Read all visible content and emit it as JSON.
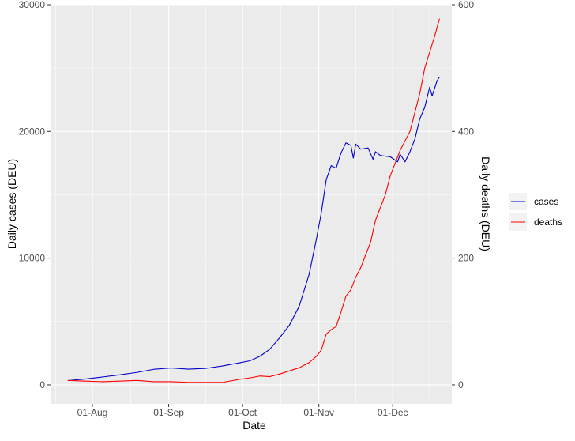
{
  "chart_data": {
    "type": "line",
    "xlabel": "Date",
    "ylabel": "Daily cases (DEU)",
    "y2label": "Daily deaths (DEU)",
    "xlim": [
      "2020-07-15",
      "2020-12-25"
    ],
    "xticks": [
      {
        "date": "2020-08-01",
        "label": "01-Aug"
      },
      {
        "date": "2020-09-01",
        "label": "01-Sep"
      },
      {
        "date": "2020-10-01",
        "label": "01-Oct"
      },
      {
        "date": "2020-11-01",
        "label": "01-Nov"
      },
      {
        "date": "2020-12-01",
        "label": "01-Dec"
      }
    ],
    "ylim": [
      -1500,
      30000
    ],
    "yticks": [
      0,
      10000,
      20000,
      30000
    ],
    "y2lim": [
      -30,
      600
    ],
    "y2ticks": [
      0,
      200,
      400,
      600
    ],
    "grid": true,
    "panel_background": "#ebebeb",
    "legend_position": "right",
    "series": [
      {
        "name": "cases",
        "color": "#0000cd",
        "axis": "left",
        "points": [
          [
            "2020-07-22",
            340
          ],
          [
            "2020-07-29",
            460
          ],
          [
            "2020-08-05",
            620
          ],
          [
            "2020-08-12",
            790
          ],
          [
            "2020-08-19",
            980
          ],
          [
            "2020-08-26",
            1230
          ],
          [
            "2020-09-02",
            1330
          ],
          [
            "2020-09-09",
            1240
          ],
          [
            "2020-09-16",
            1300
          ],
          [
            "2020-09-23",
            1500
          ],
          [
            "2020-09-30",
            1750
          ],
          [
            "2020-10-04",
            1900
          ],
          [
            "2020-10-08",
            2250
          ],
          [
            "2020-10-12",
            2800
          ],
          [
            "2020-10-16",
            3700
          ],
          [
            "2020-10-20",
            4700
          ],
          [
            "2020-10-24",
            6200
          ],
          [
            "2020-10-28",
            8700
          ],
          [
            "2020-10-31",
            11500
          ],
          [
            "2020-11-02",
            13600
          ],
          [
            "2020-11-04",
            16200
          ],
          [
            "2020-11-06",
            17300
          ],
          [
            "2020-11-08",
            17100
          ],
          [
            "2020-11-10",
            18300
          ],
          [
            "2020-11-12",
            19100
          ],
          [
            "2020-11-14",
            18900
          ],
          [
            "2020-11-15",
            17900
          ],
          [
            "2020-11-16",
            19000
          ],
          [
            "2020-11-18",
            18600
          ],
          [
            "2020-11-21",
            18700
          ],
          [
            "2020-11-23",
            17800
          ],
          [
            "2020-11-24",
            18400
          ],
          [
            "2020-11-26",
            18100
          ],
          [
            "2020-11-30",
            18000
          ],
          [
            "2020-12-03",
            17600
          ],
          [
            "2020-12-04",
            18200
          ],
          [
            "2020-12-06",
            17600
          ],
          [
            "2020-12-08",
            18400
          ],
          [
            "2020-12-10",
            19400
          ],
          [
            "2020-12-12",
            21000
          ],
          [
            "2020-12-14",
            21900
          ],
          [
            "2020-12-16",
            23500
          ],
          [
            "2020-12-17",
            22800
          ],
          [
            "2020-12-19",
            24000
          ],
          [
            "2020-12-20",
            24300
          ]
        ]
      },
      {
        "name": "deaths",
        "color": "#ff0000",
        "axis": "right",
        "points": [
          [
            "2020-07-22",
            7
          ],
          [
            "2020-07-29",
            6
          ],
          [
            "2020-08-05",
            5
          ],
          [
            "2020-08-12",
            6
          ],
          [
            "2020-08-19",
            7
          ],
          [
            "2020-08-26",
            5
          ],
          [
            "2020-09-02",
            5
          ],
          [
            "2020-09-09",
            4
          ],
          [
            "2020-09-16",
            4
          ],
          [
            "2020-09-23",
            4
          ],
          [
            "2020-09-30",
            9
          ],
          [
            "2020-10-04",
            11
          ],
          [
            "2020-10-08",
            14
          ],
          [
            "2020-10-12",
            13
          ],
          [
            "2020-10-16",
            17
          ],
          [
            "2020-10-20",
            22
          ],
          [
            "2020-10-24",
            27
          ],
          [
            "2020-10-28",
            35
          ],
          [
            "2020-10-31",
            45
          ],
          [
            "2020-11-02",
            55
          ],
          [
            "2020-11-04",
            80
          ],
          [
            "2020-11-06",
            87
          ],
          [
            "2020-11-08",
            92
          ],
          [
            "2020-11-10",
            115
          ],
          [
            "2020-11-12",
            140
          ],
          [
            "2020-11-14",
            150
          ],
          [
            "2020-11-16",
            170
          ],
          [
            "2020-11-18",
            185
          ],
          [
            "2020-11-20",
            205
          ],
          [
            "2020-11-22",
            225
          ],
          [
            "2020-11-24",
            260
          ],
          [
            "2020-11-26",
            280
          ],
          [
            "2020-11-28",
            300
          ],
          [
            "2020-11-30",
            330
          ],
          [
            "2020-12-02",
            350
          ],
          [
            "2020-12-04",
            370
          ],
          [
            "2020-12-06",
            385
          ],
          [
            "2020-12-08",
            400
          ],
          [
            "2020-12-10",
            430
          ],
          [
            "2020-12-12",
            460
          ],
          [
            "2020-12-14",
            500
          ],
          [
            "2020-12-16",
            525
          ],
          [
            "2020-12-18",
            550
          ],
          [
            "2020-12-20",
            578
          ]
        ]
      }
    ]
  }
}
